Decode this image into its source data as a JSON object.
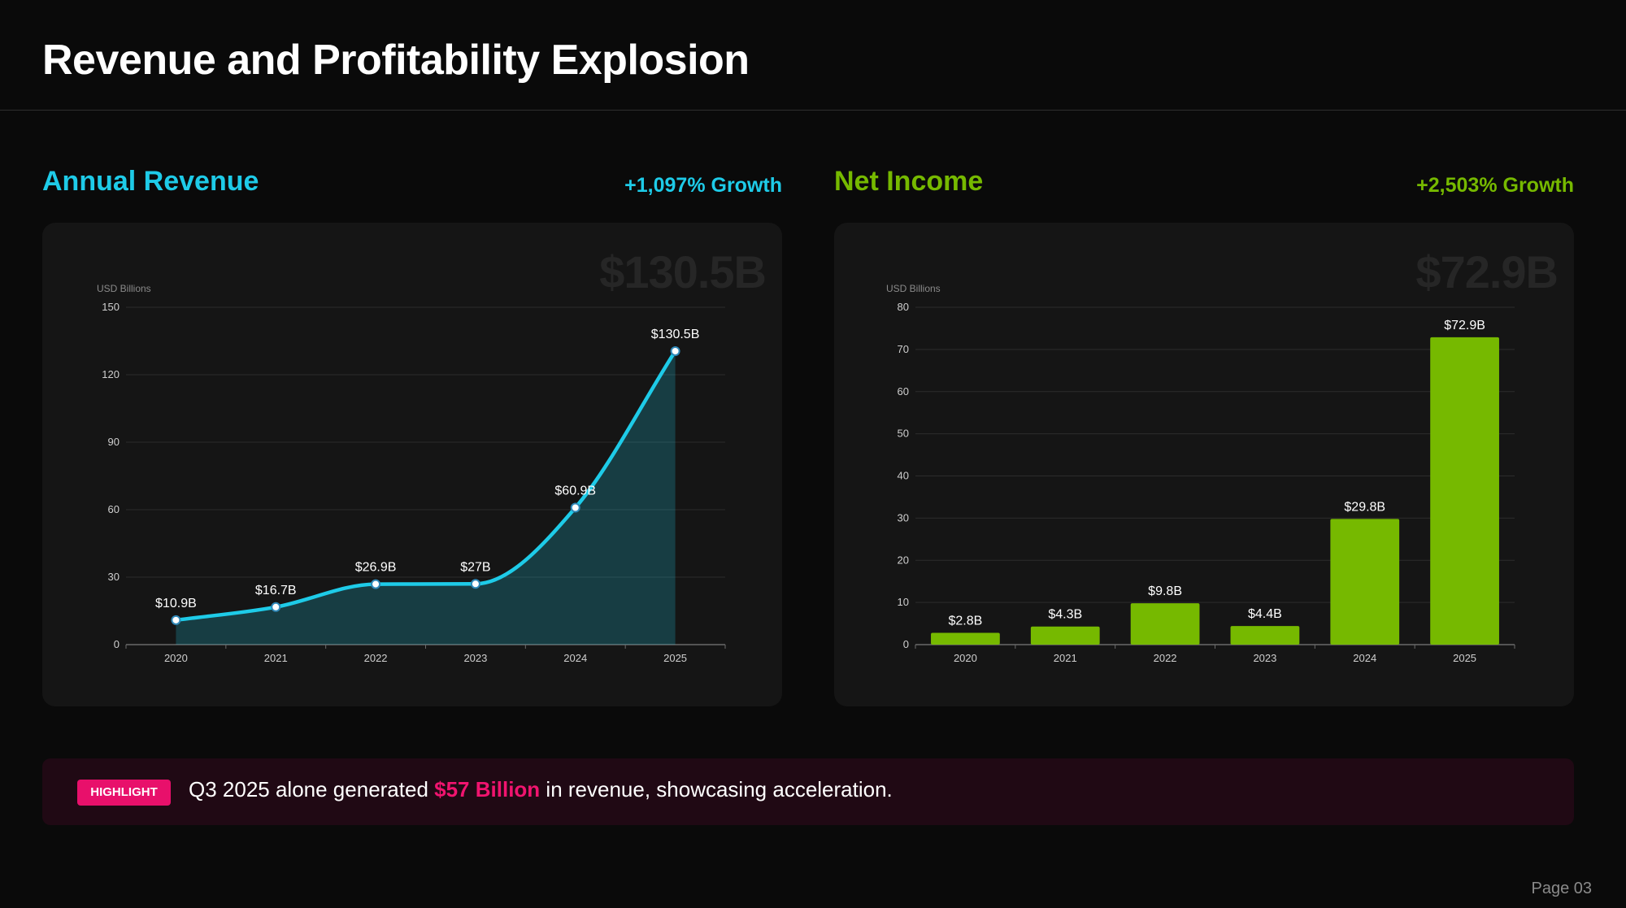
{
  "title": "Revenue and Profitability Explosion",
  "colors": {
    "revenue": "#1ecbe8",
    "income": "#76b900",
    "highlight": "#f0146f"
  },
  "revenue_panel": {
    "title": "Annual Revenue",
    "growth": "+1,097% Growth",
    "watermark": "$130.5B"
  },
  "income_panel": {
    "title": "Net Income",
    "growth": "+2,503% Growth",
    "watermark": "$72.9B"
  },
  "chart_data": [
    {
      "type": "area",
      "name": "revenue",
      "ylabel": "USD Billions",
      "categories": [
        "2020",
        "2021",
        "2022",
        "2023",
        "2024",
        "2025"
      ],
      "values": [
        10.9,
        16.7,
        26.9,
        27,
        60.9,
        130.5
      ],
      "data_labels": [
        "$10.9B",
        "$16.7B",
        "$26.9B",
        "$27B",
        "$60.9B",
        "$130.5B"
      ],
      "ylim": [
        0,
        150
      ],
      "yticks": [
        0,
        30,
        60,
        90,
        120,
        150
      ],
      "grid": true
    },
    {
      "type": "bar",
      "name": "income",
      "ylabel": "USD Billions",
      "categories": [
        "2020",
        "2021",
        "2022",
        "2023",
        "2024",
        "2025"
      ],
      "values": [
        2.8,
        4.3,
        9.8,
        4.4,
        29.8,
        72.9
      ],
      "data_labels": [
        "$2.8B",
        "$4.3B",
        "$9.8B",
        "$4.4B",
        "$29.8B",
        "$72.9B"
      ],
      "ylim": [
        0,
        80
      ],
      "yticks": [
        0,
        10,
        20,
        30,
        40,
        50,
        60,
        70,
        80
      ],
      "grid": true
    }
  ],
  "highlight": {
    "badge": "HIGHLIGHT",
    "text_before": "Q3 2025 alone generated ",
    "accent": "$57 Billion",
    "text_after": " in revenue, showcasing acceleration."
  },
  "page": "Page 03"
}
